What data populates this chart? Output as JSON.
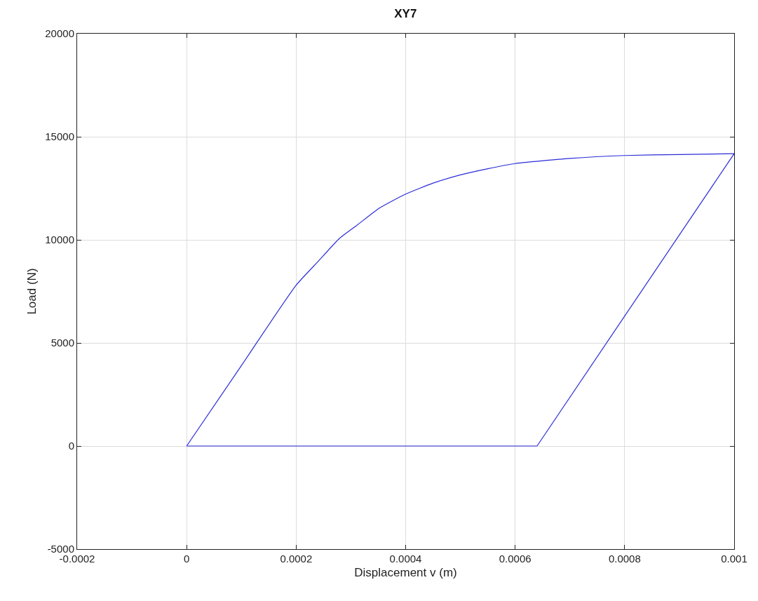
{
  "chart_data": {
    "type": "line",
    "title": "XY7",
    "xlabel": "Displacement v (m)",
    "ylabel": "Load (N)",
    "series": [
      {
        "color": "#2b2bd9",
        "x": [
          0,
          0.0001,
          0.0002,
          0.00024,
          0.000279,
          0.000313,
          0.000352,
          0.0004,
          0.00045,
          0.0005,
          0.00055,
          0.0006,
          0.0007,
          0.0008,
          0.0009,
          0.001
        ],
        "values": [
          0,
          3900,
          7800,
          8950,
          10070,
          10750,
          11540,
          12220,
          12750,
          13150,
          13450,
          13700,
          13950,
          14090,
          14140,
          14180
        ]
      },
      {
        "color": "#2b2bd9",
        "x": [
          0.00064,
          0.001
        ],
        "values": [
          0,
          14180
        ]
      },
      {
        "color": "#2b2bd9",
        "x": [
          0,
          0.00064
        ],
        "values": [
          0,
          0
        ]
      }
    ],
    "xlim": [
      -0.0002,
      0.001
    ],
    "xticks": [
      -0.0002,
      0,
      0.0002,
      0.0004,
      0.0006,
      0.0008,
      0.001
    ],
    "ylim": [
      -5000,
      20000
    ],
    "yticks": [
      -5000,
      0,
      5000,
      10000,
      15000,
      20000
    ],
    "grid": true,
    "marker": "none",
    "line_style": "solid"
  }
}
